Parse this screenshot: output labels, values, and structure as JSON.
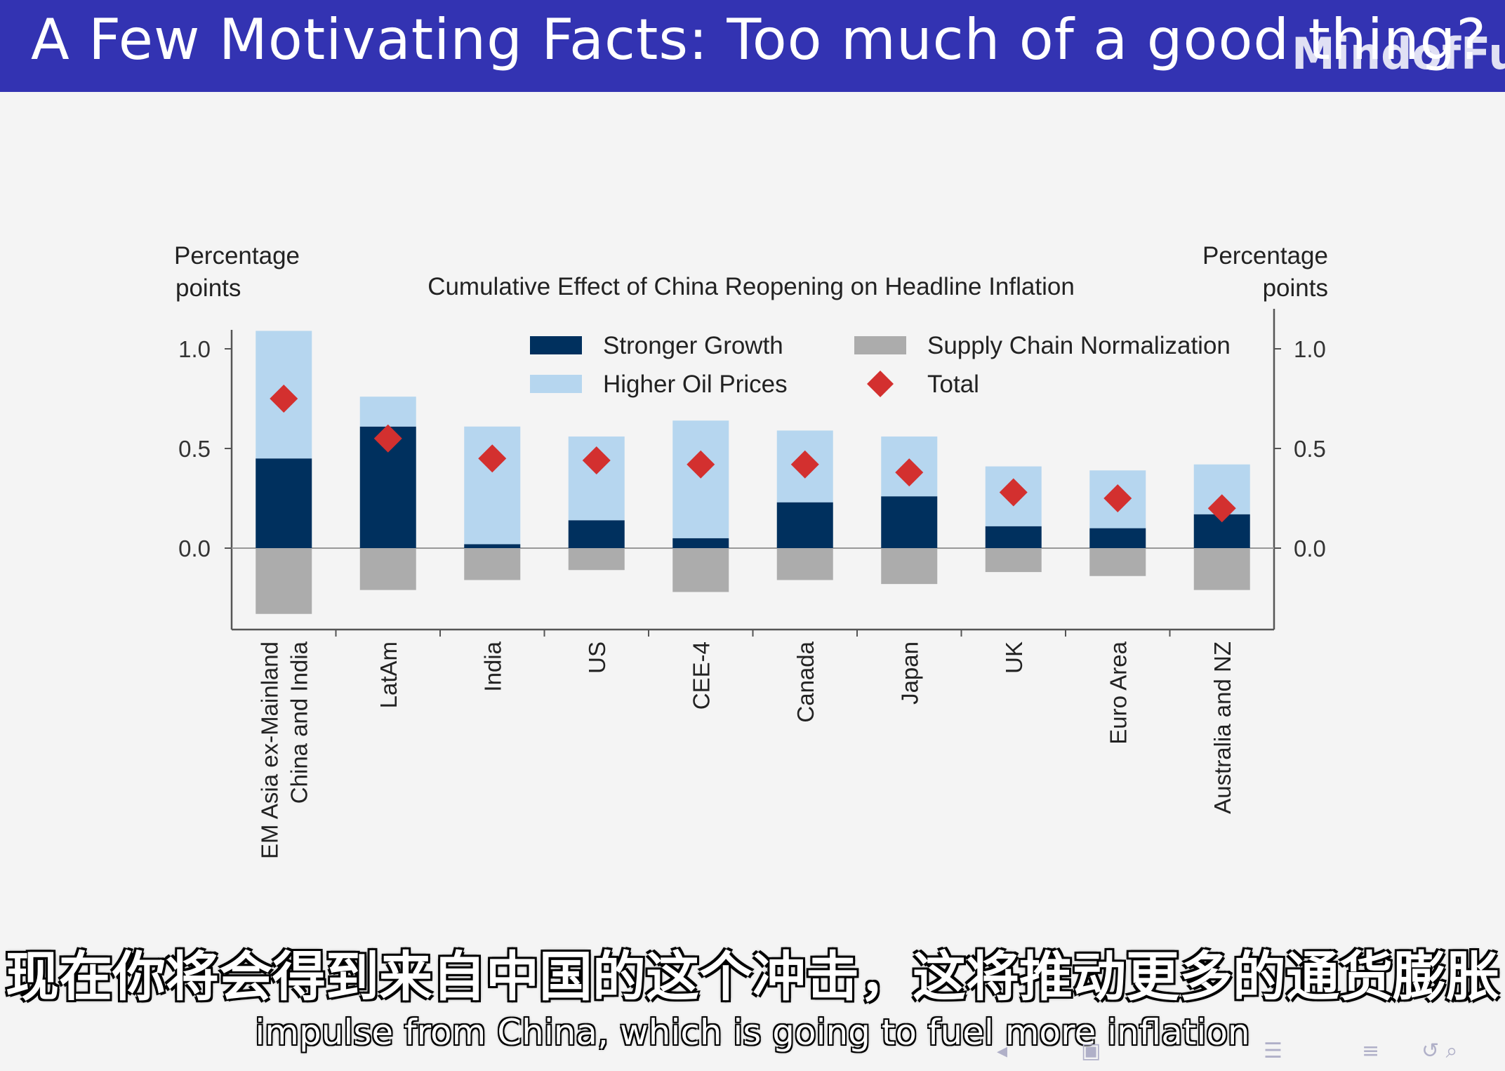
{
  "slide": {
    "title": "A Few Motivating Facts:  Too much of a good thing?",
    "watermark": "MindofFutu"
  },
  "subtitles": {
    "chinese": "现在你将会得到来自中国的这个冲击，这将推动更多的通货膨胀",
    "english": "impulse from China, which is going to fuel more inflation"
  },
  "chart_data": {
    "type": "bar",
    "stacked": true,
    "title": "Cumulative Effect of China Reopening on Headline Inflation",
    "ylabel_left": "Percentage points",
    "ylabel_right": "Percentage points",
    "ylim": [
      -0.4,
      1.0
    ],
    "yticks": [
      0.0,
      0.5,
      1.0
    ],
    "categories": [
      "EM Asia ex-Mainland China and India",
      "LatAm",
      "India",
      "US",
      "CEE-4",
      "Canada",
      "Japan",
      "UK",
      "Euro Area",
      "Australia and NZ"
    ],
    "category_lines": [
      [
        "EM Asia ex-Mainland",
        "China and India"
      ],
      [
        "LatAm"
      ],
      [
        "India"
      ],
      [
        "US"
      ],
      [
        "CEE-4"
      ],
      [
        "Canada"
      ],
      [
        "Japan"
      ],
      [
        "UK"
      ],
      [
        "Euro Area"
      ],
      [
        "Australia and NZ"
      ]
    ],
    "series": [
      {
        "name": "Stronger Growth",
        "color": "#00305e",
        "values": [
          0.45,
          0.61,
          0.02,
          0.14,
          0.05,
          0.23,
          0.26,
          0.11,
          0.1,
          0.17
        ]
      },
      {
        "name": "Higher Oil Prices",
        "color": "#b6d6ef",
        "values": [
          0.64,
          0.15,
          0.59,
          0.42,
          0.59,
          0.36,
          0.3,
          0.3,
          0.29,
          0.25
        ]
      },
      {
        "name": "Supply Chain Normalization",
        "color": "#acacac",
        "values": [
          -0.33,
          -0.21,
          -0.16,
          -0.11,
          -0.22,
          -0.16,
          -0.18,
          -0.12,
          -0.14,
          -0.21
        ]
      },
      {
        "name": "Total",
        "color": "#d3302f",
        "marker": "diamond",
        "values": [
          0.75,
          0.55,
          0.45,
          0.44,
          0.42,
          0.42,
          0.38,
          0.28,
          0.25,
          0.2
        ]
      }
    ],
    "legend_placement": "top-center",
    "grid": false
  }
}
